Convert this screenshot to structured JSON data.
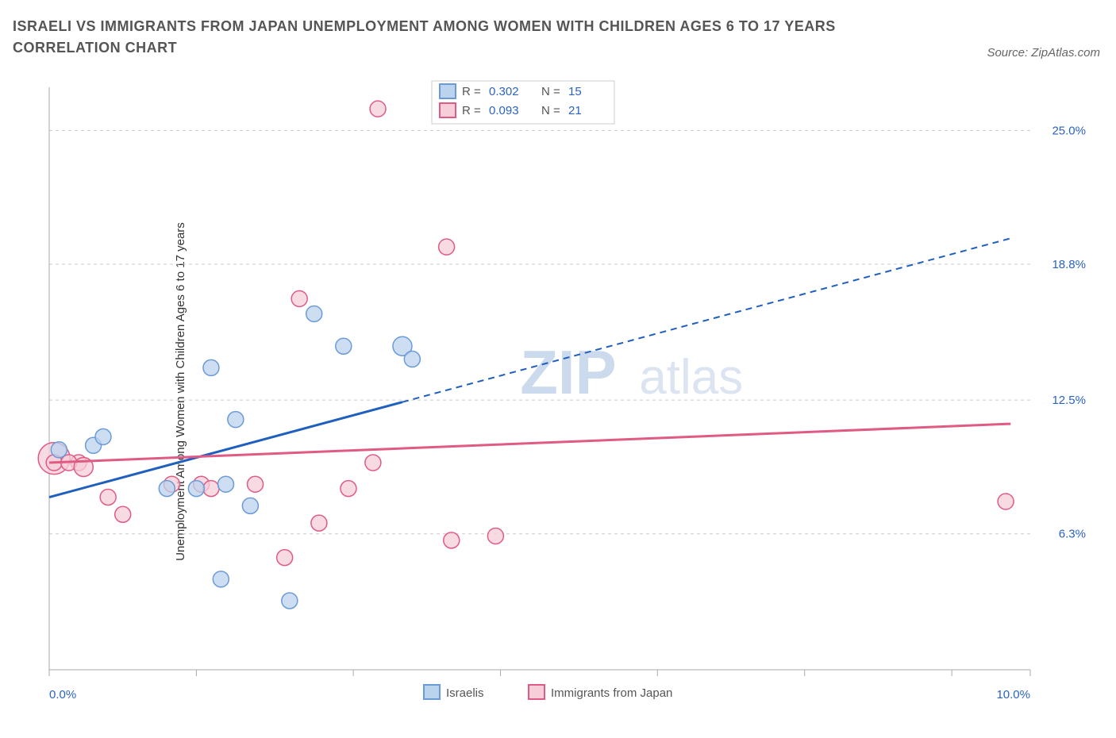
{
  "title": "ISRAELI VS IMMIGRANTS FROM JAPAN UNEMPLOYMENT AMONG WOMEN WITH CHILDREN AGES 6 TO 17 YEARS CORRELATION CHART",
  "source_label": "Source: ZipAtlas.com",
  "ylabel": "Unemployment Among Women with Children Ages 6 to 17 years",
  "watermark_a": "ZIP",
  "watermark_b": "atlas",
  "chart": {
    "type": "scatter",
    "background_color": "#ffffff",
    "grid_color": "#cccccc",
    "xlim": [
      0.0,
      10.0
    ],
    "ylim": [
      0.0,
      27.0
    ],
    "y_ticks": [
      6.3,
      12.5,
      18.8,
      25.0
    ],
    "y_tick_labels": [
      "6.3%",
      "12.5%",
      "18.8%",
      "25.0%"
    ],
    "x_ticks": [
      0.0,
      1.5,
      3.1,
      4.6,
      6.2,
      7.7,
      9.2,
      10.0
    ],
    "x_tick_labels_shown": {
      "0.0": "0.0%",
      "10.0": "10.0%"
    },
    "series": [
      {
        "key": "israelis",
        "name": "Israelis",
        "fill": "#bcd3ee",
        "stroke": "#6a9bd8",
        "line_color": "#1f5fbf",
        "R": "0.302",
        "N": "15",
        "marker_r": 10,
        "points": [
          {
            "x": 0.45,
            "y": 10.4,
            "r": 10
          },
          {
            "x": 0.1,
            "y": 10.2,
            "r": 10
          },
          {
            "x": 0.55,
            "y": 10.8,
            "r": 10
          },
          {
            "x": 1.2,
            "y": 8.4,
            "r": 10
          },
          {
            "x": 1.5,
            "y": 8.4,
            "r": 10
          },
          {
            "x": 1.8,
            "y": 8.6,
            "r": 10
          },
          {
            "x": 1.75,
            "y": 4.2,
            "r": 10
          },
          {
            "x": 2.05,
            "y": 7.6,
            "r": 10
          },
          {
            "x": 1.9,
            "y": 11.6,
            "r": 10
          },
          {
            "x": 2.45,
            "y": 3.2,
            "r": 10
          },
          {
            "x": 2.7,
            "y": 16.5,
            "r": 10
          },
          {
            "x": 1.65,
            "y": 14.0,
            "r": 10
          },
          {
            "x": 3.0,
            "y": 15.0,
            "r": 10
          },
          {
            "x": 3.6,
            "y": 15.0,
            "r": 12
          },
          {
            "x": 3.7,
            "y": 14.4,
            "r": 10
          }
        ],
        "trend": {
          "x1": 0.0,
          "y1": 8.0,
          "x2": 3.6,
          "y2": 12.6,
          "x2_ext": 9.8,
          "y2_ext": 20.0,
          "solid_end_x": 3.6
        }
      },
      {
        "key": "japan",
        "name": "Immigrants from Japan",
        "fill": "#f6cdd9",
        "stroke": "#e05b84",
        "line_color": "#e05b84",
        "R": "0.093",
        "N": "21",
        "marker_r": 10,
        "points": [
          {
            "x": 0.05,
            "y": 9.8,
            "r": 20
          },
          {
            "x": 0.05,
            "y": 9.6,
            "r": 10
          },
          {
            "x": 0.3,
            "y": 9.6,
            "r": 10
          },
          {
            "x": 0.6,
            "y": 8.0,
            "r": 10
          },
          {
            "x": 0.75,
            "y": 7.2,
            "r": 10
          },
          {
            "x": 1.25,
            "y": 8.6,
            "r": 10
          },
          {
            "x": 1.55,
            "y": 8.6,
            "r": 10
          },
          {
            "x": 1.65,
            "y": 8.4,
            "r": 10
          },
          {
            "x": 2.1,
            "y": 8.6,
            "r": 10
          },
          {
            "x": 2.4,
            "y": 5.2,
            "r": 10
          },
          {
            "x": 2.55,
            "y": 17.2,
            "r": 10
          },
          {
            "x": 2.75,
            "y": 6.8,
            "r": 10
          },
          {
            "x": 3.05,
            "y": 8.4,
            "r": 10
          },
          {
            "x": 3.3,
            "y": 9.6,
            "r": 10
          },
          {
            "x": 3.35,
            "y": 26.0,
            "r": 10
          },
          {
            "x": 4.1,
            "y": 6.0,
            "r": 10
          },
          {
            "x": 4.05,
            "y": 19.6,
            "r": 10
          },
          {
            "x": 4.55,
            "y": 6.2,
            "r": 10
          },
          {
            "x": 9.75,
            "y": 7.8,
            "r": 10
          },
          {
            "x": 0.2,
            "y": 9.6,
            "r": 10
          },
          {
            "x": 0.35,
            "y": 9.4,
            "r": 12
          }
        ],
        "trend": {
          "x1": 0.0,
          "y1": 9.6,
          "x2": 9.8,
          "y2": 11.4,
          "x2_ext": 9.8,
          "y2_ext": 11.4,
          "solid_end_x": 9.8
        }
      }
    ]
  },
  "legend": {
    "R_label": "R =",
    "N_label": "N ="
  }
}
